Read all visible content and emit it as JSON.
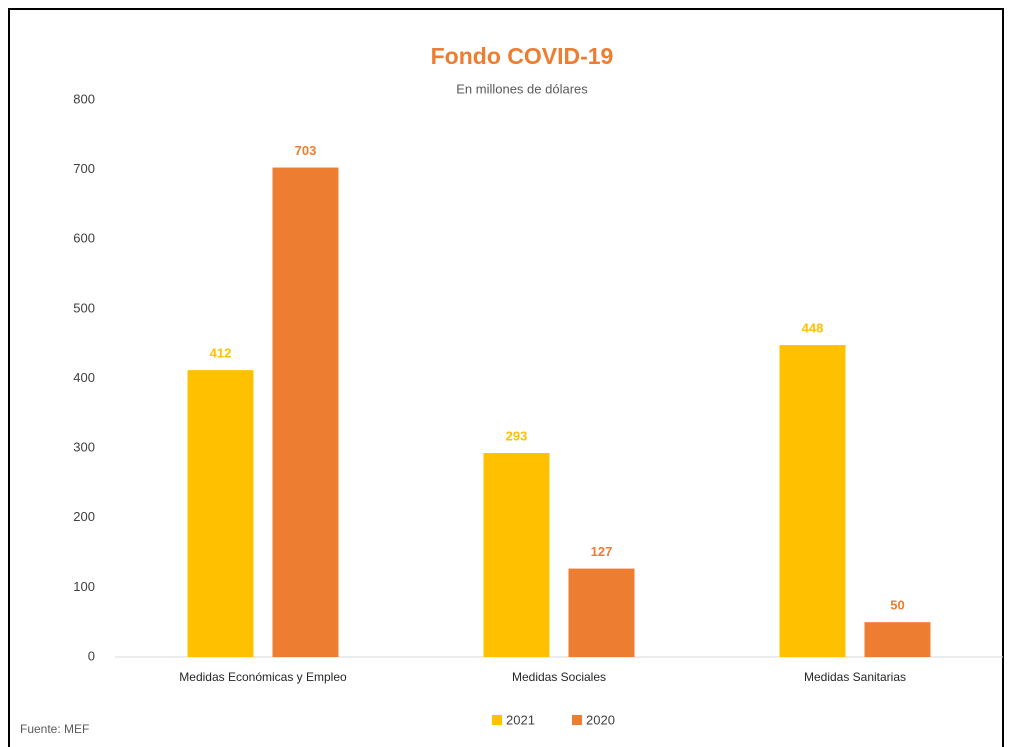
{
  "chart_data": {
    "type": "bar",
    "title": "Fondo COVID-19",
    "subtitle": "En millones de dólares",
    "categories": [
      "Medidas Económicas y Empleo",
      "Medidas Sociales",
      "Medidas Sanitarias"
    ],
    "series": [
      {
        "name": "2021",
        "color": "#FFC000",
        "values": [
          412,
          293,
          448
        ]
      },
      {
        "name": "2020",
        "color": "#ED7D31",
        "values": [
          703,
          127,
          50
        ]
      }
    ],
    "ylim": [
      0,
      800
    ],
    "yticks": [
      0,
      100,
      200,
      300,
      400,
      500,
      600,
      700,
      800
    ],
    "grid": false,
    "legend": "bottom",
    "source": "Fuente: MEF"
  }
}
